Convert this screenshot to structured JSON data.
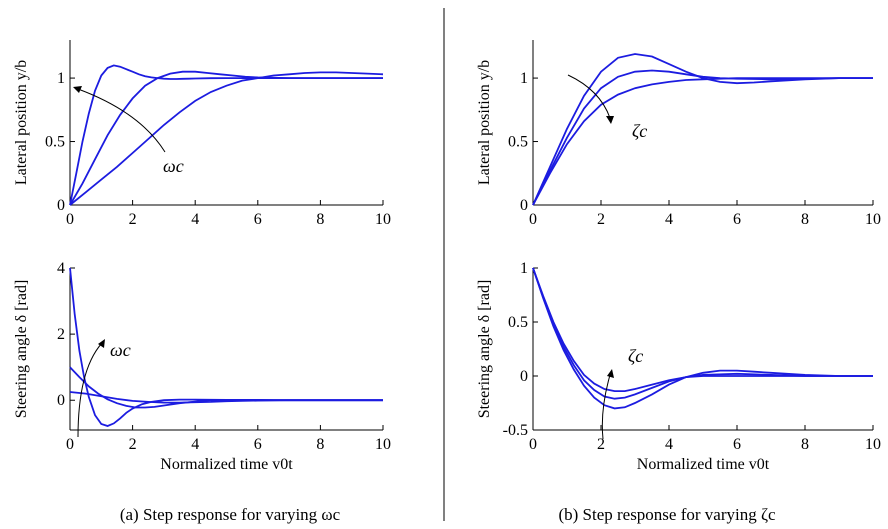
{
  "chart_data": [
    {
      "type": "line",
      "panel": "a-top",
      "xlabel": "",
      "ylabel": "Lateral position y/b",
      "xlim": [
        0,
        10
      ],
      "ylim": [
        0,
        1.3
      ],
      "xticks": [
        0,
        2,
        4,
        6,
        8,
        10
      ],
      "yticks": [
        0,
        0.5,
        1
      ],
      "annotation": "ωc",
      "series": [
        {
          "x": [
            0,
            0.2,
            0.4,
            0.6,
            0.8,
            1,
            1.2,
            1.4,
            1.6,
            1.8,
            2,
            2.2,
            2.4,
            2.6,
            2.8,
            3,
            3.2,
            3.4,
            3.6,
            3.8,
            4,
            4.5,
            5,
            6,
            7,
            8,
            9,
            10
          ],
          "y": [
            0,
            0.25,
            0.5,
            0.72,
            0.9,
            1.02,
            1.08,
            1.1,
            1.09,
            1.07,
            1.05,
            1.03,
            1.015,
            1.005,
            1.0,
            0.995,
            0.993,
            0.993,
            0.994,
            0.995,
            0.997,
            0.999,
            1.0,
            1.0,
            1.0,
            1.0,
            1.0,
            1.0
          ]
        },
        {
          "x": [
            0,
            0.4,
            0.8,
            1.2,
            1.6,
            2,
            2.4,
            2.8,
            3.2,
            3.6,
            4,
            4.4,
            4.8,
            5.2,
            5.6,
            6,
            7,
            8,
            9,
            10
          ],
          "y": [
            0,
            0.17,
            0.36,
            0.55,
            0.71,
            0.84,
            0.94,
            1.0,
            1.035,
            1.05,
            1.05,
            1.04,
            1.03,
            1.02,
            1.01,
            1.005,
            1.0,
            1.0,
            1.0,
            1.0
          ]
        },
        {
          "x": [
            0,
            0.5,
            1,
            1.5,
            2,
            2.5,
            3,
            3.5,
            4,
            4.5,
            5,
            5.5,
            6,
            6.5,
            7,
            7.5,
            8,
            8.5,
            9,
            9.5,
            10
          ],
          "y": [
            0,
            0.1,
            0.2,
            0.3,
            0.41,
            0.52,
            0.63,
            0.73,
            0.82,
            0.89,
            0.94,
            0.98,
            1.0,
            1.02,
            1.03,
            1.04,
            1.045,
            1.045,
            1.04,
            1.035,
            1.03
          ]
        }
      ]
    },
    {
      "type": "line",
      "panel": "a-bottom",
      "xlabel": "Normalized time v0t",
      "ylabel": "Steering angle δ [rad]",
      "xlim": [
        0,
        10
      ],
      "ylim": [
        -0.9,
        4
      ],
      "xticks": [
        0,
        2,
        4,
        6,
        8,
        10
      ],
      "yticks": [
        0,
        2,
        4
      ],
      "annotation": "ωc",
      "series": [
        {
          "x": [
            0,
            0.15,
            0.3,
            0.45,
            0.6,
            0.8,
            1,
            1.2,
            1.4,
            1.6,
            1.8,
            2,
            2.3,
            2.6,
            3,
            3.5,
            4,
            5,
            6,
            8,
            10
          ],
          "y": [
            4,
            2.6,
            1.5,
            0.7,
            0.1,
            -0.45,
            -0.72,
            -0.78,
            -0.7,
            -0.55,
            -0.38,
            -0.25,
            -0.12,
            -0.05,
            0,
            0.02,
            0.02,
            0.01,
            0,
            0,
            0
          ]
        },
        {
          "x": [
            0,
            0.3,
            0.6,
            0.9,
            1.2,
            1.5,
            1.8,
            2.1,
            2.4,
            2.7,
            3,
            3.5,
            4,
            4.5,
            5,
            6,
            7,
            8,
            10
          ],
          "y": [
            1,
            0.7,
            0.42,
            0.2,
            0.03,
            -0.09,
            -0.17,
            -0.22,
            -0.22,
            -0.2,
            -0.16,
            -0.09,
            -0.04,
            0,
            0.01,
            0.01,
            0,
            0,
            0
          ]
        },
        {
          "x": [
            0,
            0.5,
            1,
            1.5,
            2,
            2.5,
            3,
            3.5,
            4,
            4.5,
            5,
            5.5,
            6,
            7,
            8,
            9,
            10
          ],
          "y": [
            0.25,
            0.2,
            0.12,
            0.04,
            -0.02,
            -0.05,
            -0.07,
            -0.07,
            -0.06,
            -0.05,
            -0.03,
            -0.02,
            -0.01,
            0,
            0,
            0,
            0
          ]
        }
      ]
    },
    {
      "type": "line",
      "panel": "b-top",
      "xlabel": "",
      "ylabel": "Lateral position y/b",
      "xlim": [
        0,
        10
      ],
      "ylim": [
        0,
        1.3
      ],
      "xticks": [
        0,
        2,
        4,
        6,
        8,
        10
      ],
      "yticks": [
        0,
        0.5,
        1
      ],
      "annotation": "ζc",
      "series": [
        {
          "x": [
            0,
            0.5,
            1,
            1.5,
            2,
            2.5,
            3,
            3.5,
            4,
            4.5,
            5,
            5.5,
            6,
            6.5,
            7,
            8,
            9,
            10
          ],
          "y": [
            0,
            0.3,
            0.6,
            0.86,
            1.05,
            1.16,
            1.19,
            1.17,
            1.11,
            1.05,
            1.0,
            0.97,
            0.96,
            0.965,
            0.975,
            0.99,
            1.0,
            1.0
          ]
        },
        {
          "x": [
            0,
            0.5,
            1,
            1.5,
            2,
            2.5,
            3,
            3.5,
            4,
            4.5,
            5,
            5.5,
            6,
            7,
            8,
            9,
            10
          ],
          "y": [
            0,
            0.27,
            0.53,
            0.76,
            0.92,
            1.01,
            1.05,
            1.06,
            1.05,
            1.03,
            1.01,
            1.0,
            0.995,
            0.99,
            0.995,
            1.0,
            1.0
          ]
        },
        {
          "x": [
            0,
            0.5,
            1,
            1.5,
            2,
            2.5,
            3,
            3.5,
            4,
            4.5,
            5,
            5.5,
            6,
            7,
            8,
            9,
            10
          ],
          "y": [
            0,
            0.25,
            0.48,
            0.66,
            0.79,
            0.87,
            0.92,
            0.95,
            0.97,
            0.985,
            0.99,
            0.995,
            1.0,
            1.0,
            1.0,
            1.0,
            1.0
          ]
        }
      ]
    },
    {
      "type": "line",
      "panel": "b-bottom",
      "xlabel": "Normalized time v0t",
      "ylabel": "Steering angle δ [rad]",
      "xlim": [
        0,
        10
      ],
      "ylim": [
        -0.5,
        1
      ],
      "xticks": [
        0,
        2,
        4,
        6,
        8,
        10
      ],
      "yticks": [
        -0.5,
        0,
        0.5,
        1
      ],
      "ytick_labels": [
        "-0.5",
        "0",
        "0.5",
        "1"
      ],
      "annotation": "ζc",
      "series": [
        {
          "x": [
            0,
            0.3,
            0.6,
            0.9,
            1.2,
            1.5,
            1.8,
            2.1,
            2.4,
            2.7,
            3,
            3.5,
            4,
            4.5,
            5,
            5.5,
            6,
            6.5,
            7,
            8,
            9,
            10
          ],
          "y": [
            1,
            0.72,
            0.46,
            0.24,
            0.06,
            -0.09,
            -0.2,
            -0.27,
            -0.3,
            -0.29,
            -0.25,
            -0.17,
            -0.08,
            -0.01,
            0.03,
            0.05,
            0.05,
            0.04,
            0.03,
            0.01,
            0,
            0
          ]
        },
        {
          "x": [
            0,
            0.3,
            0.6,
            0.9,
            1.2,
            1.5,
            1.8,
            2.1,
            2.4,
            2.7,
            3,
            3.5,
            4,
            4.5,
            5,
            6,
            7,
            8,
            10
          ],
          "y": [
            1,
            0.73,
            0.48,
            0.27,
            0.1,
            -0.04,
            -0.13,
            -0.19,
            -0.21,
            -0.2,
            -0.17,
            -0.11,
            -0.05,
            -0.01,
            0.01,
            0.02,
            0.01,
            0,
            0
          ]
        },
        {
          "x": [
            0,
            0.3,
            0.6,
            0.9,
            1.2,
            1.5,
            1.8,
            2.1,
            2.4,
            2.7,
            3,
            3.5,
            4,
            4.5,
            5,
            6,
            7,
            8,
            10
          ],
          "y": [
            1,
            0.74,
            0.5,
            0.3,
            0.14,
            0.01,
            -0.07,
            -0.12,
            -0.14,
            -0.14,
            -0.12,
            -0.08,
            -0.04,
            -0.01,
            0,
            0,
            0,
            0,
            0
          ]
        }
      ]
    }
  ],
  "captions": {
    "a": "(a) Step response for varying ωc",
    "b": "(b) Step response for varying ζc"
  }
}
